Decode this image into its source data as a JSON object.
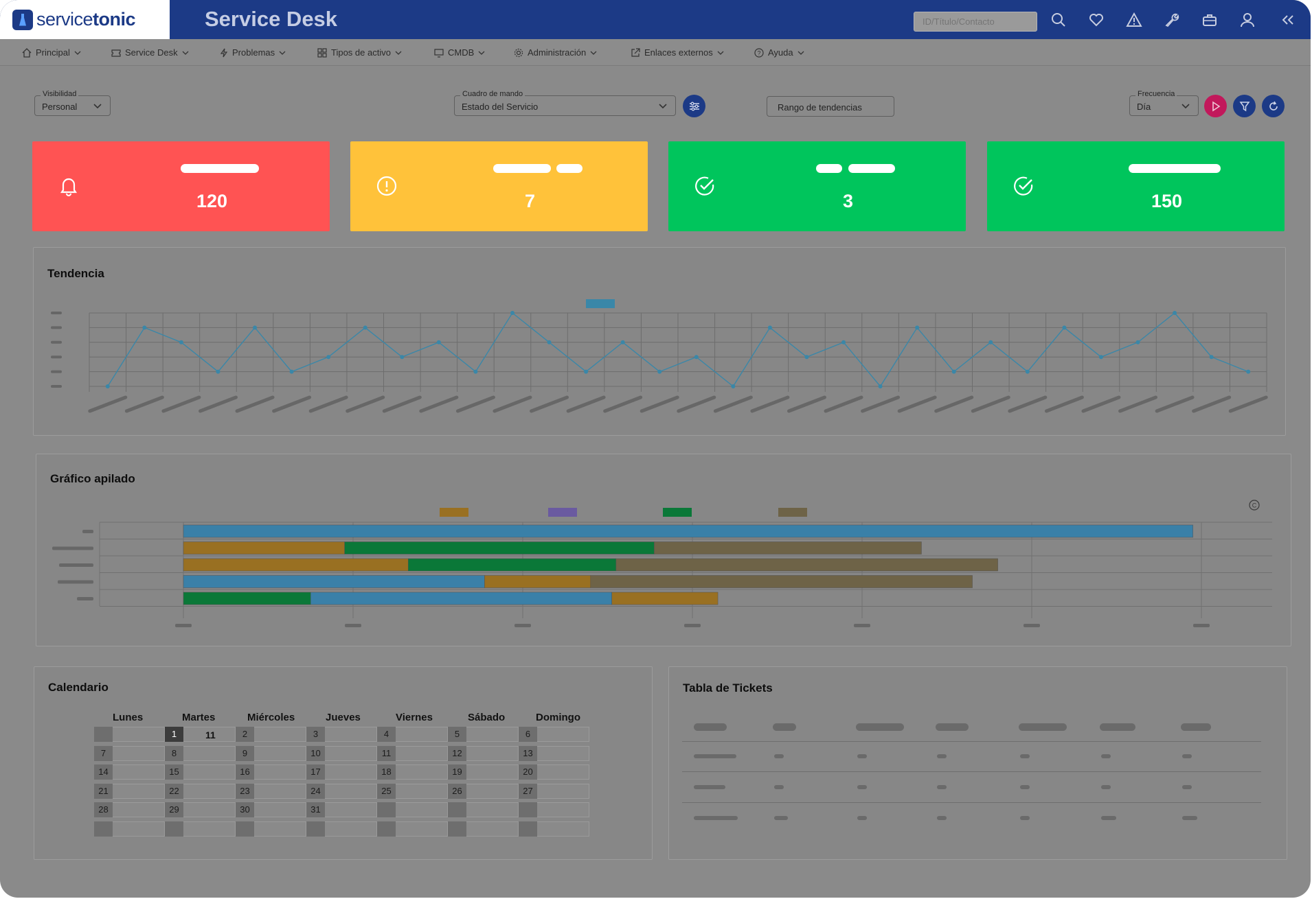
{
  "header": {
    "brand_service": "service",
    "brand_tonic": "tonic",
    "app_title": "Service Desk",
    "search_placeholder": "ID/Título/Contacto",
    "icons": [
      "search-icon",
      "heart-icon",
      "warning-icon",
      "wrench-icon",
      "briefcase-icon",
      "user-icon",
      "collapse-icon"
    ]
  },
  "menu": {
    "items": [
      {
        "label": "Principal",
        "icon": "home-icon"
      },
      {
        "label": "Service Desk",
        "icon": "ticket-icon"
      },
      {
        "label": "Problemas",
        "icon": "bolt-icon"
      },
      {
        "label": "Tipos de activo",
        "icon": "grid-icon"
      },
      {
        "label": "CMDB",
        "icon": "monitor-icon"
      },
      {
        "label": "Administración",
        "icon": "gear-icon"
      },
      {
        "label": "Enlaces externos",
        "icon": "external-link-icon"
      },
      {
        "label": "Ayuda",
        "icon": "help-icon"
      }
    ]
  },
  "filters": {
    "visibility_label": "Visibilidad",
    "visibility_value": "Personal",
    "dashboard_label": "Cuadro de mando",
    "dashboard_value": "Estado del Servicio",
    "trend_range": "Rango de tendencias",
    "frequency_label": "Frecuencia",
    "frequency_value": "Día"
  },
  "kpis": [
    {
      "value": "120",
      "color": "#ff5353",
      "icon": "bell-icon"
    },
    {
      "value": "7",
      "color": "#ffc23a",
      "icon": "alert-circle-icon"
    },
    {
      "value": "3",
      "color": "#00c55c",
      "icon": "check-circle-icon"
    },
    {
      "value": "150",
      "color": "#00c55c",
      "icon": "check-circle-icon"
    }
  ],
  "panels": {
    "trend_title": "Tendencia",
    "stacked_title": "Gráfico apilado",
    "calendar_title": "Calendario",
    "tickets_title": "Tabla de Tickets"
  },
  "chart_data": [
    {
      "type": "line",
      "title": "Tendencia",
      "series": [
        {
          "color": "#3a87a8",
          "values": [
            0,
            4,
            3,
            1,
            4,
            1,
            2,
            4,
            2,
            3,
            1,
            5,
            3,
            1,
            3,
            1,
            2,
            0,
            4,
            2,
            3,
            0,
            4,
            1,
            3,
            1,
            4,
            2,
            3,
            5,
            2,
            1
          ]
        }
      ],
      "ylim": [
        0,
        5
      ],
      "grid": true,
      "legend": "top-center"
    },
    {
      "type": "bar",
      "orientation": "horizontal",
      "stacked": true,
      "title": "Gráfico apilado",
      "legend": "top-center",
      "grid": true,
      "xlim": [
        0,
        12
      ],
      "rows": [
        [
          {
            "color": "#3a80a8",
            "value": 11.9
          }
        ],
        [
          {
            "color": "#997022",
            "value": 1.9
          },
          {
            "color": "#0a7838",
            "value": 3.65
          },
          {
            "color": "#6e6347",
            "value": 3.15
          }
        ],
        [
          {
            "color": "#997022",
            "value": 2.65
          },
          {
            "color": "#0a7838",
            "value": 2.45
          },
          {
            "color": "#6e6347",
            "value": 4.5
          }
        ],
        [
          {
            "color": "#3a80a8",
            "value": 3.55
          },
          {
            "color": "#997022",
            "value": 1.25
          },
          {
            "color": "#6e6347",
            "value": 4.5
          }
        ],
        [
          {
            "color": "#0a7838",
            "value": 1.5
          },
          {
            "color": "#3a80a8",
            "value": 3.55
          },
          {
            "color": "#997022",
            "value": 1.25
          }
        ]
      ],
      "legend_colors": [
        "#997022",
        "#6a5aa0",
        "#0a7838",
        "#6e6347"
      ]
    }
  ],
  "calendar": {
    "days": [
      "Lunes",
      "Martes",
      "Miércoles",
      "Jueves",
      "Viernes",
      "Sábado",
      "Domingo"
    ],
    "weeks": [
      [
        "",
        "1",
        "2",
        "3",
        "4",
        "5",
        "6"
      ],
      [
        "7",
        "8",
        "9",
        "10",
        "11",
        "12",
        "13"
      ],
      [
        "14",
        "15",
        "16",
        "17",
        "18",
        "19",
        "20"
      ],
      [
        "21",
        "22",
        "23",
        "24",
        "25",
        "26",
        "27"
      ],
      [
        "28",
        "29",
        "30",
        "31",
        "",
        "",
        ""
      ],
      [
        "",
        "",
        "",
        "",
        "",
        "",
        ""
      ]
    ],
    "today": "1",
    "today_count": "11"
  }
}
